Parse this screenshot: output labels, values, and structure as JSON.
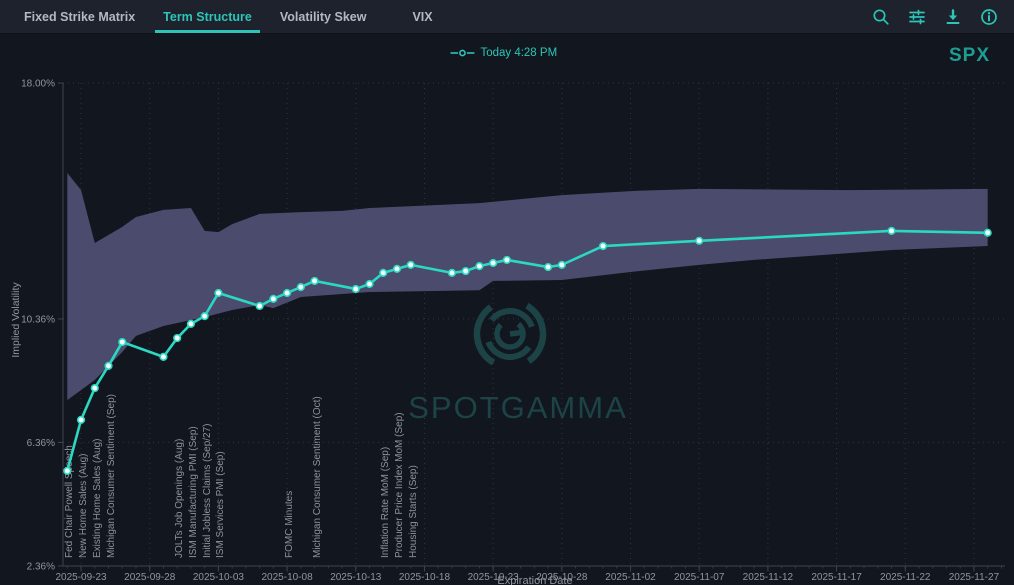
{
  "colors": {
    "accent": "#2cc5b7",
    "line": "#2bd9c2",
    "band": "#4b4b6e",
    "watermark": "#1c4447"
  },
  "tabs": [
    {
      "label": "Fixed Strike Matrix",
      "active": false
    },
    {
      "label": "Term Structure",
      "active": true
    },
    {
      "label": "Volatility Skew",
      "active": false
    },
    {
      "label": "VIX",
      "active": false
    }
  ],
  "toolbar": {
    "icons": [
      "zoom-icon",
      "filter-settings-icon",
      "download-icon",
      "info-icon"
    ]
  },
  "legend": {
    "label": "Today 4:28 PM"
  },
  "symbol": "SPX",
  "watermark": "SPOTGAMMA",
  "chart_data": {
    "type": "line",
    "title": "",
    "xlabel": "Expiration Date",
    "ylabel": "Implied Volatility",
    "x_start": "2025-09-22",
    "x_ticks": [
      "2025-09-23",
      "2025-09-28",
      "2025-10-03",
      "2025-10-08",
      "2025-10-13",
      "2025-10-18",
      "2025-10-23",
      "2025-10-28",
      "2025-11-02",
      "2025-11-07",
      "2025-11-12",
      "2025-11-17",
      "2025-11-22",
      "2025-11-27"
    ],
    "y_ticks": [
      {
        "label": "18.00%",
        "value": 18.0
      },
      {
        "label": "10.36%",
        "value": 10.36
      },
      {
        "label": "6.36%",
        "value": 6.36
      },
      {
        "label": "2.36%",
        "value": 2.36
      }
    ],
    "ylim": [
      2.36,
      18.0
    ],
    "grid": true,
    "legend_position": "top-center",
    "series": [
      {
        "name": "Today 4:28 PM",
        "color": "#2bd9c2",
        "points": [
          [
            "2025-09-22",
            5.44
          ],
          [
            "2025-09-23",
            7.09
          ],
          [
            "2025-09-24",
            8.12
          ],
          [
            "2025-09-25",
            8.84
          ],
          [
            "2025-09-26",
            9.61
          ],
          [
            "2025-09-29",
            9.13
          ],
          [
            "2025-09-30",
            9.74
          ],
          [
            "2025-10-01",
            10.2
          ],
          [
            "2025-10-02",
            10.45
          ],
          [
            "2025-10-03",
            11.2
          ],
          [
            "2025-10-06",
            10.78
          ],
          [
            "2025-10-07",
            11.01
          ],
          [
            "2025-10-08",
            11.2
          ],
          [
            "2025-10-09",
            11.39
          ],
          [
            "2025-10-10",
            11.59
          ],
          [
            "2025-10-13",
            11.33
          ],
          [
            "2025-10-14",
            11.49
          ],
          [
            "2025-10-15",
            11.85
          ],
          [
            "2025-10-16",
            11.98
          ],
          [
            "2025-10-17",
            12.11
          ],
          [
            "2025-10-20",
            11.85
          ],
          [
            "2025-10-21",
            11.91
          ],
          [
            "2025-10-22",
            12.07
          ],
          [
            "2025-10-23",
            12.17
          ],
          [
            "2025-10-24",
            12.27
          ],
          [
            "2025-10-27",
            12.04
          ],
          [
            "2025-10-28",
            12.11
          ],
          [
            "2025-10-31",
            12.72
          ],
          [
            "2025-11-07",
            12.89
          ],
          [
            "2025-11-21",
            13.21
          ],
          [
            "2025-11-28",
            13.15
          ]
        ]
      }
    ],
    "band": {
      "name": "expected-move-band",
      "color": "#4b4b6e",
      "upper": [
        [
          "2025-09-22",
          15.09
        ],
        [
          "2025-09-23",
          14.53
        ],
        [
          "2025-09-24",
          12.82
        ],
        [
          "2025-09-26",
          13.34
        ],
        [
          "2025-09-27",
          13.66
        ],
        [
          "2025-09-29",
          13.89
        ],
        [
          "2025-10-01",
          13.95
        ],
        [
          "2025-10-02",
          13.21
        ],
        [
          "2025-10-03",
          13.17
        ],
        [
          "2025-10-04",
          13.43
        ],
        [
          "2025-10-06",
          13.76
        ],
        [
          "2025-10-09",
          13.82
        ],
        [
          "2025-10-12",
          13.86
        ],
        [
          "2025-10-14",
          13.95
        ],
        [
          "2025-10-22",
          14.11
        ],
        [
          "2025-10-28",
          14.37
        ],
        [
          "2025-11-02",
          14.5
        ],
        [
          "2025-11-07",
          14.57
        ],
        [
          "2025-11-18",
          14.53
        ],
        [
          "2025-11-28",
          14.57
        ]
      ],
      "lower": [
        [
          "2025-09-22",
          7.73
        ],
        [
          "2025-09-24",
          8.38
        ],
        [
          "2025-09-26",
          9.29
        ],
        [
          "2025-09-27",
          9.81
        ],
        [
          "2025-09-29",
          10.13
        ],
        [
          "2025-10-02",
          10.42
        ],
        [
          "2025-10-04",
          10.65
        ],
        [
          "2025-10-06",
          10.81
        ],
        [
          "2025-10-07",
          10.71
        ],
        [
          "2025-10-09",
          11.07
        ],
        [
          "2025-10-14",
          11.23
        ],
        [
          "2025-10-22",
          11.29
        ],
        [
          "2025-10-23",
          11.59
        ],
        [
          "2025-10-28",
          11.62
        ],
        [
          "2025-11-02",
          11.88
        ],
        [
          "2025-11-07",
          12.11
        ],
        [
          "2025-11-11",
          12.27
        ],
        [
          "2025-11-21",
          12.59
        ],
        [
          "2025-11-28",
          12.72
        ]
      ]
    },
    "events": [
      {
        "date": "2025-09-22",
        "label": "Fed Chair Powell Speech"
      },
      {
        "date": "2025-09-23",
        "label": "New Home Sales (Aug)"
      },
      {
        "date": "2025-09-24",
        "label": "Existing Home Sales (Aug)"
      },
      {
        "date": "2025-09-25",
        "label": "Michigan Consumer Sentiment (Sep)"
      },
      {
        "date": "2025-09-30",
        "label": "JOLTs Job Openings (Aug)"
      },
      {
        "date": "2025-10-01",
        "label": "ISM Manufacturing PMI (Sep)"
      },
      {
        "date": "2025-10-02",
        "label": "Initial Jobless Claims (Sep/27)"
      },
      {
        "date": "2025-10-03",
        "label": "ISM Services PMI (Sep)"
      },
      {
        "date": "2025-10-08",
        "label": "FOMC Minutes"
      },
      {
        "date": "2025-10-10",
        "label": "Michigan Consumer Sentiment (Oct)"
      },
      {
        "date": "2025-10-15",
        "label": "Inflation Rate MoM (Sep)"
      },
      {
        "date": "2025-10-16",
        "label": "Producer Price Index MoM (Sep)"
      },
      {
        "date": "2025-10-17",
        "label": "Housing Starts (Sep)"
      }
    ]
  }
}
